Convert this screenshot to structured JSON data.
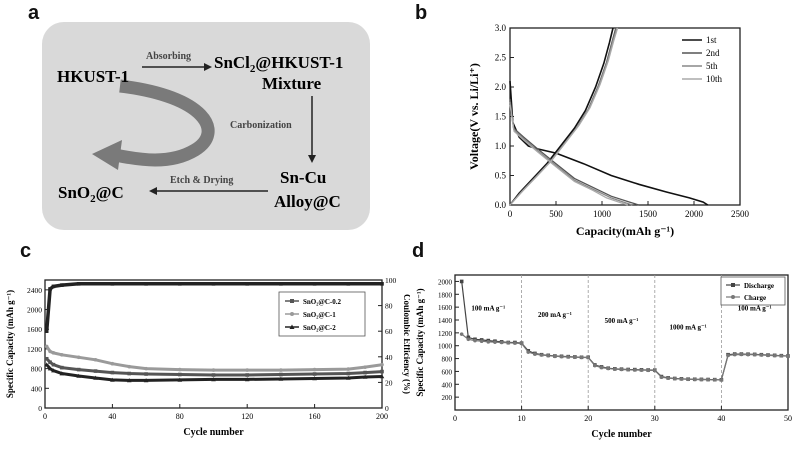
{
  "panels": {
    "a": {
      "letter": "a",
      "flow": {
        "start": "HKUST-1",
        "absorbing": "Absorbing",
        "intermediate_line1": "SnCl",
        "intermediate_sub": "2",
        "intermediate_line2": "@HKUST-1",
        "mixture": "Mixture",
        "carbonization": "Carbonization",
        "alloy_line1": "Sn-Cu",
        "alloy_line2": "Alloy@C",
        "etch": "Etch & Drying",
        "product_main": "SnO",
        "product_sub": "2",
        "product_tail": "@C"
      },
      "colors": {
        "box": "#d9d9d9",
        "curved_arrow": "#7a7a7a"
      }
    },
    "b": {
      "letter": "b"
    },
    "c": {
      "letter": "c"
    },
    "d": {
      "letter": "d"
    }
  },
  "chart_data": [
    {
      "id": "b",
      "type": "line",
      "xlabel": "Capacity(mAh g⁻¹)",
      "ylabel": "Voltage(V vs. Li/Li⁺)",
      "xlim": [
        0,
        2500
      ],
      "ylim": [
        0,
        3.0
      ],
      "xticks": [
        0,
        500,
        1000,
        1500,
        2000,
        2500
      ],
      "yticks": [
        0.0,
        0.5,
        1.0,
        1.5,
        2.0,
        2.5,
        3.0
      ],
      "legend": [
        "1st",
        "2nd",
        "5th",
        "10th"
      ],
      "legend_position": "top-right",
      "series": [
        {
          "name": "1st",
          "style": "dark",
          "discharge": [
            [
              0,
              2.1
            ],
            [
              30,
              1.4
            ],
            [
              100,
              1.15
            ],
            [
              200,
              1.0
            ],
            [
              300,
              0.95
            ],
            [
              500,
              0.88
            ],
            [
              800,
              0.7
            ],
            [
              1100,
              0.5
            ],
            [
              1400,
              0.35
            ],
            [
              1700,
              0.22
            ],
            [
              1950,
              0.12
            ],
            [
              2100,
              0.05
            ],
            [
              2150,
              0.0
            ]
          ],
          "charge": [
            [
              0,
              0.0
            ],
            [
              100,
              0.2
            ],
            [
              250,
              0.45
            ],
            [
              400,
              0.7
            ],
            [
              550,
              1.0
            ],
            [
              700,
              1.3
            ],
            [
              820,
              1.6
            ],
            [
              930,
              2.0
            ],
            [
              1020,
              2.4
            ],
            [
              1080,
              2.75
            ],
            [
              1120,
              3.0
            ]
          ]
        },
        {
          "name": "2nd",
          "style": "mid",
          "discharge": [
            [
              0,
              1.8
            ],
            [
              40,
              1.3
            ],
            [
              150,
              1.15
            ],
            [
              300,
              0.95
            ],
            [
              500,
              0.7
            ],
            [
              700,
              0.45
            ],
            [
              900,
              0.3
            ],
            [
              1100,
              0.15
            ],
            [
              1300,
              0.05
            ],
            [
              1400,
              0.0
            ]
          ],
          "charge": [
            [
              0,
              0.0
            ],
            [
              120,
              0.22
            ],
            [
              280,
              0.48
            ],
            [
              430,
              0.72
            ],
            [
              580,
              1.02
            ],
            [
              730,
              1.32
            ],
            [
              850,
              1.62
            ],
            [
              960,
              2.02
            ],
            [
              1050,
              2.42
            ],
            [
              1110,
              2.77
            ],
            [
              1150,
              3.0
            ]
          ]
        },
        {
          "name": "5th",
          "style": "light",
          "discharge": [
            [
              0,
              1.75
            ],
            [
              40,
              1.28
            ],
            [
              150,
              1.12
            ],
            [
              300,
              0.92
            ],
            [
              500,
              0.67
            ],
            [
              700,
              0.42
            ],
            [
              900,
              0.27
            ],
            [
              1100,
              0.12
            ],
            [
              1250,
              0.04
            ],
            [
              1330,
              0.0
            ]
          ],
          "charge": [
            [
              0,
              0.0
            ],
            [
              130,
              0.23
            ],
            [
              290,
              0.49
            ],
            [
              440,
              0.74
            ],
            [
              590,
              1.04
            ],
            [
              740,
              1.34
            ],
            [
              860,
              1.64
            ],
            [
              970,
              2.04
            ],
            [
              1060,
              2.44
            ],
            [
              1120,
              2.79
            ],
            [
              1160,
              3.0
            ]
          ]
        },
        {
          "name": "10th",
          "style": "faint",
          "discharge": [
            [
              0,
              1.7
            ],
            [
              45,
              1.25
            ],
            [
              150,
              1.1
            ],
            [
              300,
              0.9
            ],
            [
              500,
              0.65
            ],
            [
              700,
              0.4
            ],
            [
              900,
              0.25
            ],
            [
              1050,
              0.12
            ],
            [
              1200,
              0.04
            ],
            [
              1280,
              0.0
            ]
          ],
          "charge": [
            [
              0,
              0.0
            ],
            [
              140,
              0.24
            ],
            [
              300,
              0.5
            ],
            [
              450,
              0.75
            ],
            [
              600,
              1.05
            ],
            [
              750,
              1.35
            ],
            [
              870,
              1.65
            ],
            [
              980,
              2.05
            ],
            [
              1070,
              2.45
            ],
            [
              1130,
              2.8
            ],
            [
              1170,
              3.0
            ]
          ]
        }
      ]
    },
    {
      "id": "c",
      "type": "scatter",
      "xlabel": "Cycle number",
      "ylabel": "Specific Capacity (mAh g⁻¹)",
      "y2label": "Coulombic Efficiency (%)",
      "xlim": [
        0,
        200
      ],
      "ylim": [
        0,
        2600
      ],
      "y2lim": [
        0,
        100
      ],
      "xticks": [
        0,
        40,
        80,
        120,
        160,
        200
      ],
      "yticks": [
        0,
        400,
        800,
        1200,
        1600,
        2000,
        2400
      ],
      "y2ticks": [
        0,
        20,
        40,
        60,
        80,
        100
      ],
      "legend_position": "right",
      "series": [
        {
          "name": "SnO₂@C-0.2",
          "marker": "square",
          "color": "#555555",
          "x": [
            1,
            3,
            5,
            10,
            20,
            30,
            40,
            50,
            60,
            80,
            100,
            120,
            140,
            160,
            180,
            190,
            200
          ],
          "y": [
            1000,
            930,
            880,
            820,
            780,
            750,
            720,
            700,
            690,
            680,
            670,
            670,
            680,
            690,
            700,
            720,
            740
          ]
        },
        {
          "name": "SnO₂@C-1",
          "marker": "circle",
          "color": "#9a9a9a",
          "x": [
            1,
            3,
            5,
            10,
            20,
            30,
            40,
            50,
            60,
            80,
            100,
            120,
            140,
            160,
            180,
            190,
            200
          ],
          "y": [
            1250,
            1150,
            1120,
            1080,
            1030,
            980,
            900,
            840,
            800,
            780,
            770,
            770,
            770,
            780,
            790,
            830,
            880
          ]
        },
        {
          "name": "SnO₂@C-2",
          "marker": "triangle",
          "color": "#222222",
          "x": [
            1,
            3,
            5,
            10,
            20,
            30,
            40,
            50,
            60,
            80,
            100,
            120,
            140,
            160,
            180,
            190,
            200
          ],
          "y": [
            880,
            800,
            760,
            700,
            650,
            610,
            570,
            560,
            560,
            570,
            580,
            580,
            590,
            600,
            610,
            630,
            640
          ]
        }
      ],
      "efficiency": {
        "x": [
          1,
          3,
          5,
          10,
          20,
          40,
          60,
          80,
          100,
          120,
          140,
          160,
          180,
          200
        ],
        "y": [
          60,
          93,
          95,
          96,
          97,
          97,
          97,
          97,
          97,
          97,
          97,
          97,
          97,
          97
        ]
      }
    },
    {
      "id": "d",
      "type": "line",
      "xlabel": "Cycle number",
      "ylabel": "Specific Capacity (mAh g⁻¹)",
      "xlim": [
        0,
        50
      ],
      "ylim": [
        0,
        2100
      ],
      "xticks": [
        0,
        10,
        20,
        30,
        40,
        50
      ],
      "yticks": [
        200,
        400,
        600,
        800,
        1000,
        1200,
        1400,
        1600,
        1800,
        2000
      ],
      "legend": [
        "Discharge",
        "Charge"
      ],
      "legend_position": "top-right",
      "rate_labels": [
        "100 mA g⁻¹",
        "200 mA g⁻¹",
        "500 mA g⁻¹",
        "1000 mA g⁻¹",
        "100 mA g⁻¹"
      ],
      "rate_boundaries": [
        10,
        20,
        30,
        40
      ],
      "series": [
        {
          "name": "Discharge",
          "marker": "square",
          "x": [
            1,
            2,
            3,
            4,
            5,
            6,
            7,
            8,
            9,
            10,
            11,
            12,
            13,
            14,
            15,
            16,
            17,
            18,
            19,
            20,
            21,
            22,
            23,
            24,
            25,
            26,
            27,
            28,
            29,
            30,
            31,
            32,
            33,
            34,
            35,
            36,
            37,
            38,
            39,
            40,
            41,
            42,
            43,
            44,
            45,
            46,
            47,
            48,
            49,
            50
          ],
          "y": [
            2000,
            1130,
            1100,
            1090,
            1080,
            1070,
            1060,
            1050,
            1050,
            1040,
            920,
            880,
            860,
            850,
            840,
            835,
            830,
            825,
            820,
            820,
            700,
            670,
            650,
            640,
            635,
            630,
            628,
            625,
            622,
            620,
            520,
            500,
            490,
            485,
            480,
            478,
            476,
            474,
            472,
            470,
            860,
            870,
            870,
            868,
            865,
            860,
            855,
            850,
            845,
            840
          ]
        },
        {
          "name": "Charge",
          "marker": "circle",
          "x": [
            1,
            2,
            3,
            4,
            5,
            6,
            7,
            8,
            9,
            10,
            11,
            12,
            13,
            14,
            15,
            16,
            17,
            18,
            19,
            20,
            21,
            22,
            23,
            24,
            25,
            26,
            27,
            28,
            29,
            30,
            31,
            32,
            33,
            34,
            35,
            36,
            37,
            38,
            39,
            40,
            41,
            42,
            43,
            44,
            45,
            46,
            47,
            48,
            49,
            50
          ],
          "y": [
            1180,
            1100,
            1080,
            1070,
            1060,
            1055,
            1050,
            1045,
            1040,
            1035,
            900,
            870,
            855,
            845,
            835,
            830,
            825,
            820,
            818,
            815,
            690,
            660,
            645,
            635,
            630,
            626,
            622,
            620,
            618,
            615,
            510,
            495,
            487,
            482,
            478,
            475,
            473,
            471,
            469,
            467,
            850,
            862,
            864,
            862,
            860,
            855,
            850,
            846,
            842,
            838
          ]
        }
      ]
    }
  ]
}
